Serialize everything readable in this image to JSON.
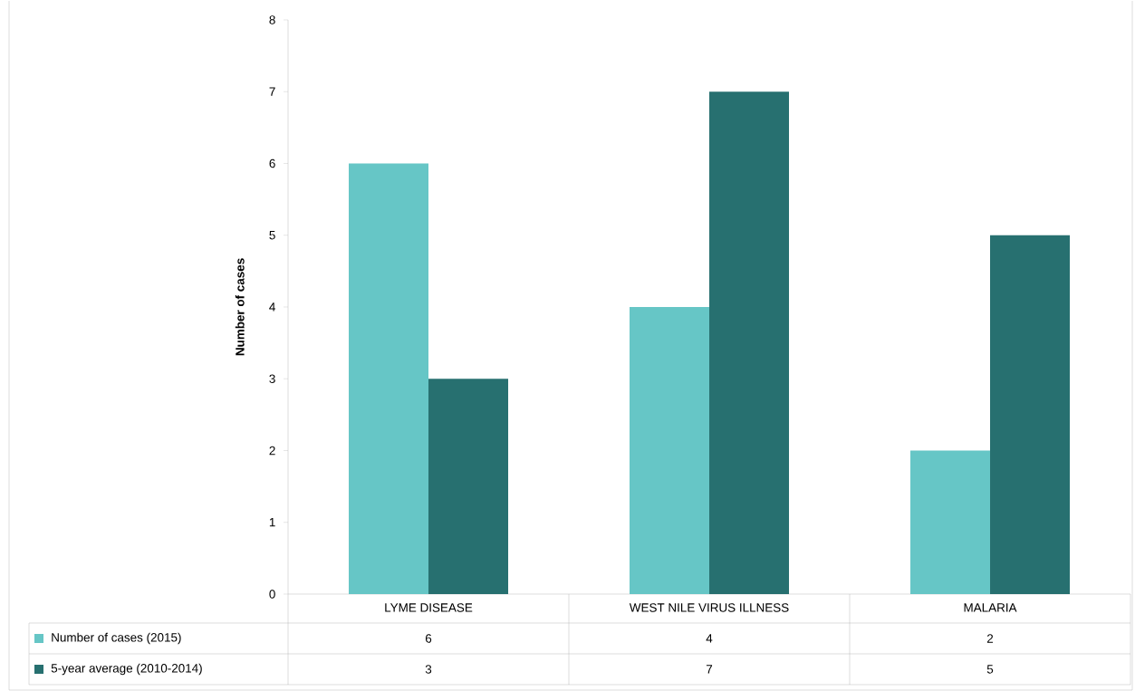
{
  "chart_data": {
    "type": "bar",
    "ylabel": "Number of cases",
    "categories": [
      "LYME DISEASE",
      "WEST NILE VIRUS ILLNESS",
      "MALARIA"
    ],
    "series": [
      {
        "name": "Number of cases (2015)",
        "color": "#66c6c6",
        "values": [
          6,
          4,
          2
        ]
      },
      {
        "name": "5-year average (2010-2014)",
        "color": "#277070",
        "values": [
          3,
          7,
          5
        ]
      }
    ],
    "ylim": [
      0,
      8
    ],
    "yticks": [
      0,
      1,
      2,
      3,
      4,
      5,
      6,
      7,
      8
    ],
    "data_labels": true,
    "legend": "bottom left",
    "grid": false
  }
}
